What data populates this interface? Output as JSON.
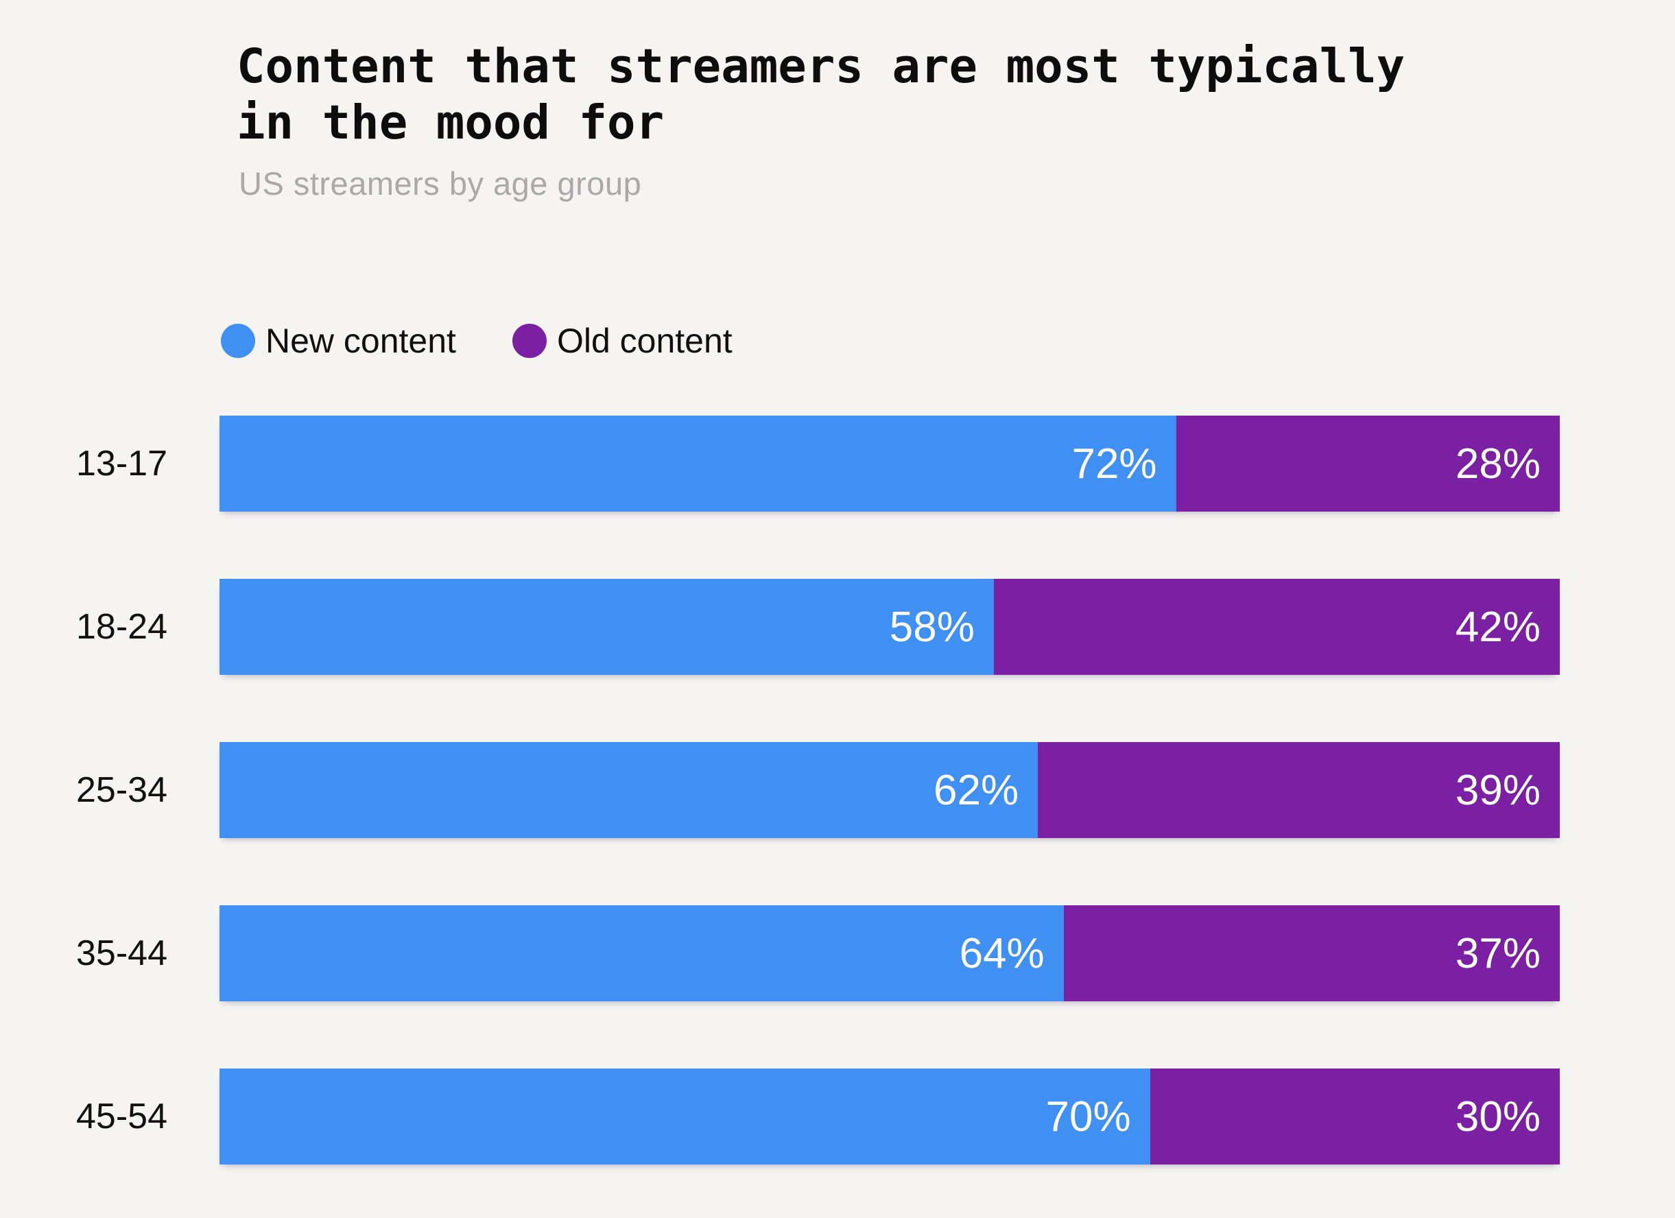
{
  "colors": {
    "background": "#F5F4F1",
    "new_content": "#4090F3",
    "old_content": "#7B20A2",
    "title_text": "#0D0D0D",
    "subtitle_text": "#A9A9A9",
    "category_text": "#111111",
    "bar_value_text": "#FFFFFF"
  },
  "title": {
    "line1": "Content that streamers are most typically",
    "line2": "in the mood for"
  },
  "subtitle": "US streamers by age group",
  "legend": [
    {
      "label": "New content",
      "color": "#4090F3"
    },
    {
      "label": "Old content",
      "color": "#7B20A2"
    }
  ],
  "chart_data": {
    "type": "bar",
    "orientation": "horizontal",
    "stacked": true,
    "title": "Content that streamers are most typically in the mood for",
    "subtitle": "US streamers by age group",
    "categories": [
      "13-17",
      "18-24",
      "25-34",
      "35-44",
      "45-54"
    ],
    "series": [
      {
        "name": "New content",
        "color": "#4090F3",
        "values": [
          72,
          58,
          62,
          64,
          70
        ],
        "labels": [
          "72%",
          "58%",
          "62%",
          "64%",
          "70%"
        ]
      },
      {
        "name": "Old content",
        "color": "#7B20A2",
        "values": [
          28,
          42,
          39,
          37,
          30
        ],
        "labels": [
          "28%",
          "42%",
          "39%",
          "37%",
          "30%"
        ]
      }
    ],
    "value_suffix": "%",
    "value_labels": "inside-right",
    "legend_position": "top-left",
    "grid": false,
    "axis_ticks": false,
    "xlim": [
      0,
      100
    ]
  }
}
